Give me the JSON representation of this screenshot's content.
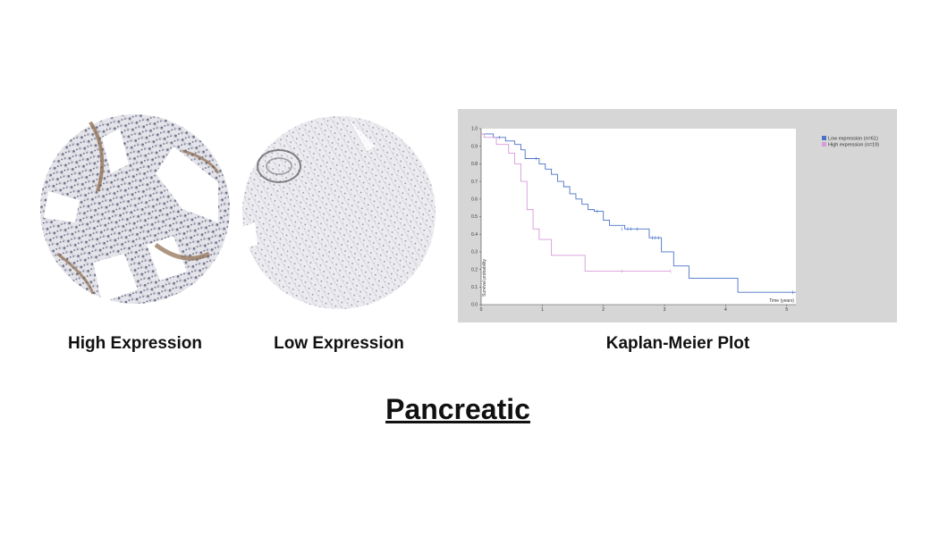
{
  "images": {
    "high": {
      "caption": "High Expression"
    },
    "low": {
      "caption": "Low Expression"
    }
  },
  "km": {
    "caption": "Kaplan-Meier Plot"
  },
  "page": {
    "title": "Pancreatic"
  },
  "chart_data": {
    "type": "line",
    "title": "",
    "xlabel": "Time (years)",
    "ylabel": "Survival probability",
    "xlim": [
      0,
      5.15
    ],
    "ylim": [
      0,
      1.0
    ],
    "x_ticks": [
      0,
      1,
      2,
      3,
      4,
      5
    ],
    "y_ticks": [
      0.0,
      0.1,
      0.2,
      0.3,
      0.4,
      0.5,
      0.6,
      0.7,
      0.8,
      0.9,
      1.0
    ],
    "grid": false,
    "legend_position": "top-right",
    "step": true,
    "series": [
      {
        "name": "Low expression (n=61)",
        "color": "#4a72c6",
        "x": [
          0,
          0.2,
          0.4,
          0.55,
          0.65,
          0.72,
          0.95,
          1.05,
          1.15,
          1.25,
          1.35,
          1.45,
          1.55,
          1.65,
          1.75,
          1.85,
          2.0,
          2.1,
          2.35,
          2.75,
          2.95,
          3.15,
          3.4,
          4.2,
          5.15
        ],
        "y": [
          0.97,
          0.95,
          0.93,
          0.91,
          0.88,
          0.83,
          0.8,
          0.77,
          0.74,
          0.7,
          0.67,
          0.63,
          0.6,
          0.57,
          0.54,
          0.53,
          0.48,
          0.45,
          0.43,
          0.38,
          0.3,
          0.22,
          0.15,
          0.07,
          0.07
        ]
      },
      {
        "name": "High expression (n=19)",
        "color": "#d79ad9",
        "x": [
          0,
          0.05,
          0.25,
          0.45,
          0.55,
          0.65,
          0.75,
          0.85,
          0.95,
          1.15,
          1.7,
          3.1
        ],
        "y": [
          0.97,
          0.95,
          0.91,
          0.86,
          0.8,
          0.7,
          0.54,
          0.43,
          0.37,
          0.28,
          0.19,
          0.19
        ]
      }
    ],
    "censor_marks": {
      "low": [
        [
          0.3,
          0.95
        ],
        [
          0.9,
          0.83
        ],
        [
          1.9,
          0.53
        ],
        [
          2.3,
          0.43
        ],
        [
          2.4,
          0.43
        ],
        [
          2.45,
          0.43
        ],
        [
          2.55,
          0.43
        ],
        [
          2.8,
          0.38
        ],
        [
          2.85,
          0.38
        ],
        [
          2.9,
          0.38
        ],
        [
          5.1,
          0.07
        ]
      ],
      "high": [
        [
          2.3,
          0.19
        ],
        [
          3.1,
          0.19
        ]
      ]
    }
  }
}
